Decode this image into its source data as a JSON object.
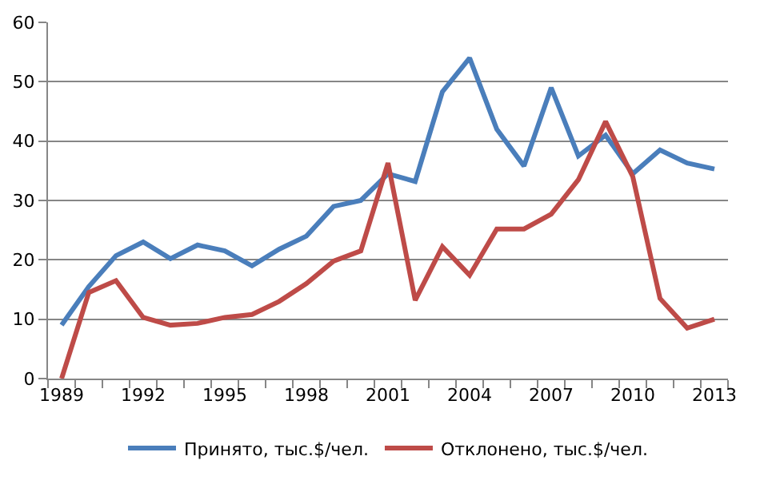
{
  "chart_data": {
    "type": "line",
    "categories": [
      "1989",
      null,
      null,
      "1992",
      null,
      null,
      "1995",
      null,
      null,
      "1998",
      null,
      null,
      "2001",
      null,
      null,
      "2004",
      null,
      null,
      "2007",
      null,
      null,
      "2010",
      null,
      null,
      "2013"
    ],
    "series": [
      {
        "name": "Принято, тыс.$/чел.",
        "color": "#4a7ebb",
        "values": [
          9,
          15.5,
          20.7,
          23,
          20.2,
          22.5,
          21.5,
          19,
          21.8,
          24,
          29,
          30,
          34.5,
          33.2,
          48.3,
          54,
          42,
          35.8,
          49,
          37.5,
          41,
          34.5,
          38.5,
          36.3,
          35.3
        ]
      },
      {
        "name": "Отклонено, тыс.$/чел.",
        "color": "#be4b48",
        "values": [
          0,
          14.5,
          16.5,
          10.3,
          9,
          9.3,
          10.3,
          10.8,
          13,
          16,
          19.8,
          21.5,
          36.3,
          13.2,
          22.2,
          17.4,
          25.2,
          25.2,
          27.7,
          33.5,
          43.3,
          34,
          13.5,
          8.5,
          10
        ]
      }
    ],
    "ylim": [
      0,
      60
    ],
    "yticks": [
      0,
      10,
      20,
      30,
      40,
      50,
      60
    ],
    "grid": "y",
    "legend": "bottom",
    "marker": "none",
    "line_style": "solid"
  }
}
